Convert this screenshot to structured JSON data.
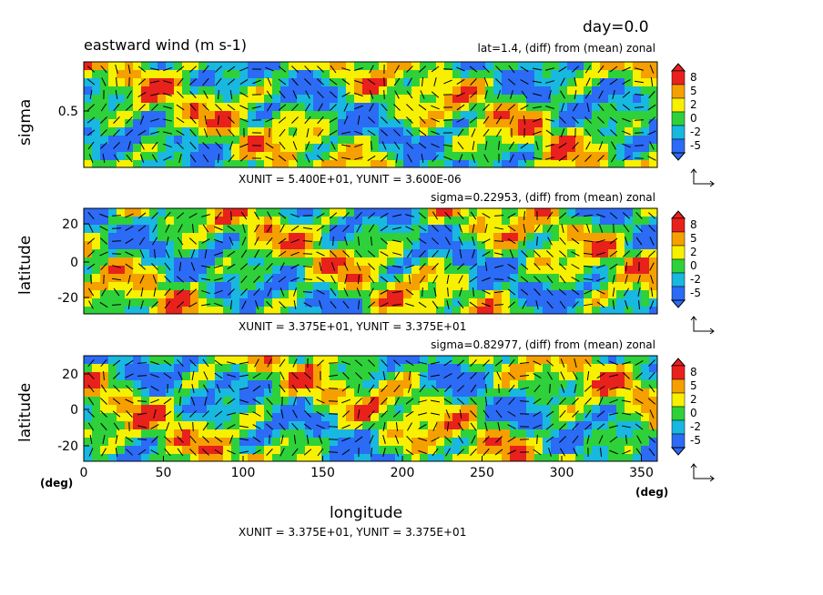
{
  "header": {
    "title": "eastward wind (m s-1)",
    "day": "day=0.0"
  },
  "colorbar": {
    "labels": [
      "8",
      "5",
      "2",
      "0",
      "-2",
      "-5"
    ],
    "colors": [
      "#e8211d",
      "#f5a000",
      "#f7f000",
      "#2ed13a",
      "#18b8e0",
      "#2b6bf5"
    ]
  },
  "chart_data": [
    {
      "type": "heatmap",
      "subtitle": "lat=1.4, (diff) from (mean) zonal",
      "ylabel": "sigma",
      "yticks": [
        "0.5"
      ],
      "unit_note": "XUNIT = 5.400E+01, YUNIT = 3.600E-06",
      "xlim": [
        0,
        360
      ]
    },
    {
      "type": "heatmap",
      "subtitle": "sigma=0.22953, (diff) from (mean) zonal",
      "ylabel": "latitude",
      "yticks": [
        "20",
        "0",
        "-20"
      ],
      "unit_note": "XUNIT = 3.375E+01, YUNIT = 3.375E+01",
      "xlim": [
        0,
        360
      ]
    },
    {
      "type": "heatmap",
      "subtitle": "sigma=0.82977, (diff) from (mean) zonal",
      "ylabel": "latitude",
      "yticks": [
        "20",
        "0",
        "-20"
      ],
      "xlabel": "longitude",
      "xticks": [
        "0",
        "50",
        "100",
        "150",
        "200",
        "250",
        "300",
        "350"
      ],
      "x_unit": "(deg)",
      "y_unit": "(deg)",
      "unit_note": "XUNIT = 3.375E+01, YUNIT = 3.375E+01",
      "xlim": [
        0,
        360
      ]
    }
  ]
}
